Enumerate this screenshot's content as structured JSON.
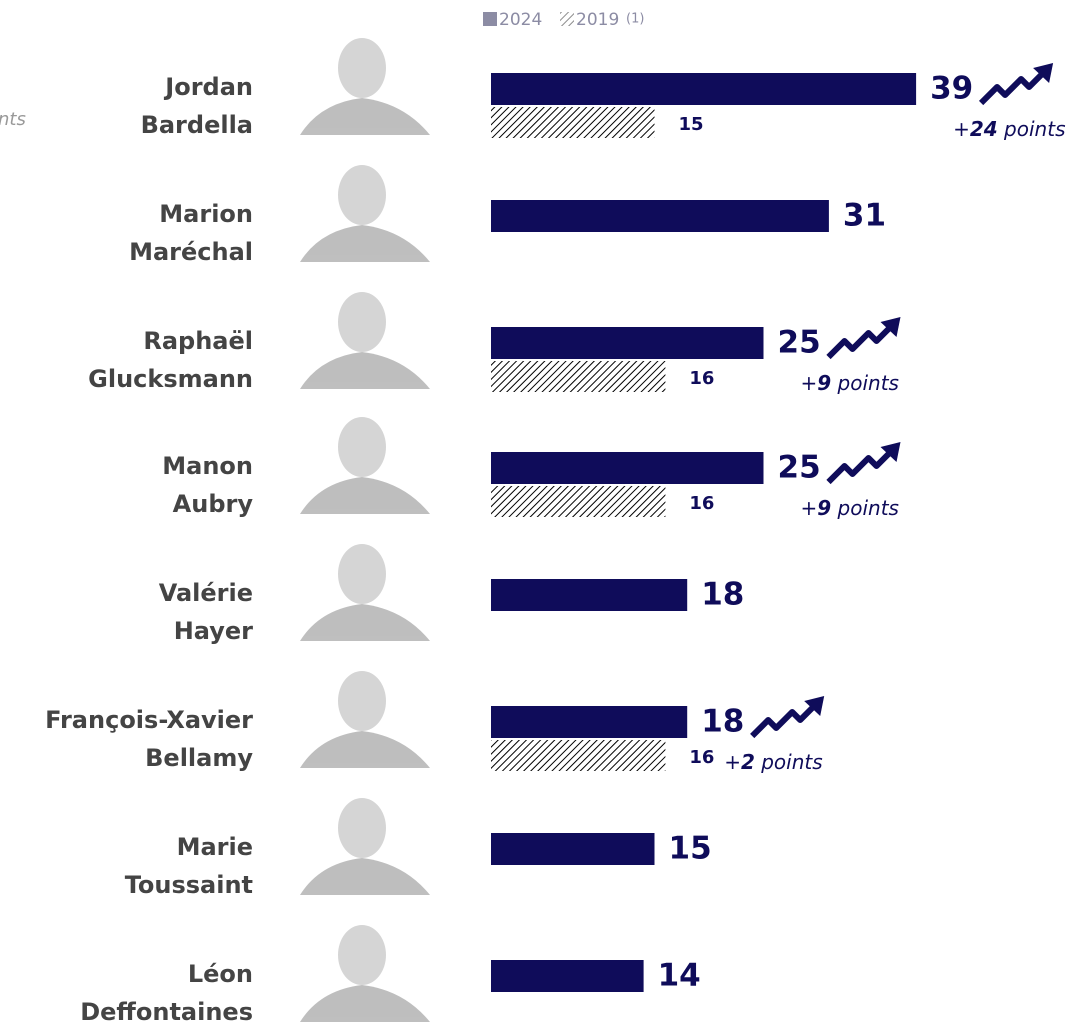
{
  "chart_data": {
    "type": "bar",
    "orientation": "horizontal",
    "cropped_text": "nts",
    "legend_note": "(1)",
    "categories": [
      [
        "Jordan",
        "Bardella"
      ],
      [
        "Marion",
        "Maréchal"
      ],
      [
        "Raphaël",
        "Glucksmann"
      ],
      [
        "Manon",
        "Aubry"
      ],
      [
        "Valérie",
        "Hayer"
      ],
      [
        "François-Xavier",
        "Bellamy"
      ],
      [
        "Marie",
        "Toussaint"
      ],
      [
        "Léon",
        "Deffontaines"
      ]
    ],
    "series": [
      {
        "name": "2024",
        "color": "#0f0c5a",
        "values": [
          39,
          31,
          25,
          25,
          18,
          18,
          15,
          14
        ]
      },
      {
        "name": "2019",
        "color": "#000000",
        "pattern": "hatch",
        "values": [
          15,
          null,
          16,
          16,
          null,
          16,
          null,
          null
        ]
      }
    ],
    "annotations": [
      {
        "category": 0,
        "sign": "+",
        "delta": 24,
        "unit": " points"
      },
      {
        "category": 2,
        "sign": "+",
        "delta": 9,
        "unit": " points"
      },
      {
        "category": 3,
        "sign": "+",
        "delta": 9,
        "unit": " points"
      },
      {
        "category": 5,
        "sign": "+",
        "delta": 2,
        "unit": " points"
      }
    ]
  }
}
